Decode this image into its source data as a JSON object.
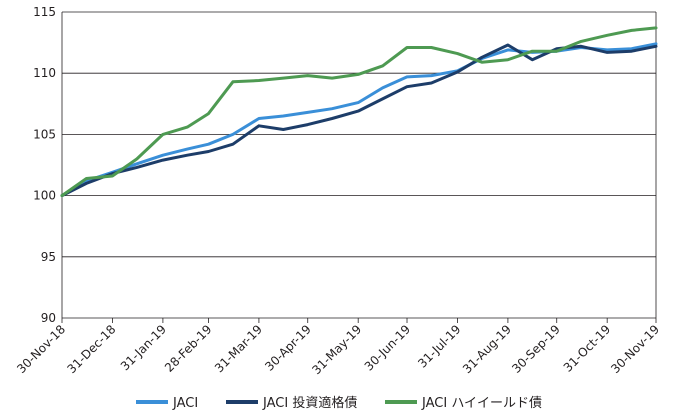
{
  "chart_data": {
    "type": "line",
    "title": "",
    "xlabel": "",
    "ylabel": "",
    "ylim": [
      90,
      115
    ],
    "yticks": [
      90,
      95,
      100,
      105,
      110,
      115
    ],
    "grid": "horizontal",
    "legend_position": "bottom",
    "x_tick_labels": [
      "30-Nov-18",
      "31-Dec-18",
      "31-Jan-19",
      "28-Feb-19",
      "31-Mar-19",
      "30-Apr-19",
      "31-May-19",
      "30-Jun-19",
      "31-Jul-19",
      "31-Aug-19",
      "30-Sep-19",
      "31-Oct-19",
      "30-Nov-19"
    ],
    "x": [
      "2018-11-30",
      "2018-12-15",
      "2018-12-31",
      "2019-01-15",
      "2019-01-31",
      "2019-02-15",
      "2019-02-28",
      "2019-03-15",
      "2019-03-31",
      "2019-04-15",
      "2019-04-30",
      "2019-05-15",
      "2019-05-31",
      "2019-06-15",
      "2019-06-30",
      "2019-07-15",
      "2019-07-31",
      "2019-08-15",
      "2019-08-31",
      "2019-09-15",
      "2019-09-30",
      "2019-10-15",
      "2019-10-31",
      "2019-11-15",
      "2019-11-30"
    ],
    "series": [
      {
        "name": "JACI",
        "color": "#3a8fd8",
        "values": [
          100.0,
          101.2,
          101.9,
          102.6,
          103.3,
          103.8,
          104.2,
          105.0,
          106.3,
          106.5,
          106.8,
          107.1,
          107.6,
          108.8,
          109.7,
          109.8,
          110.2,
          111.2,
          111.9,
          111.7,
          111.8,
          112.1,
          111.9,
          112.0,
          112.4
        ]
      },
      {
        "name": "JACI 投資適格債",
        "color": "#1d3d69",
        "values": [
          100.0,
          101.0,
          101.8,
          102.3,
          102.9,
          103.3,
          103.6,
          104.2,
          105.7,
          105.4,
          105.8,
          106.3,
          106.9,
          107.9,
          108.9,
          109.2,
          110.1,
          111.3,
          112.3,
          111.1,
          112.0,
          112.2,
          111.7,
          111.8,
          112.2
        ]
      },
      {
        "name": "JACI ハイイールド債",
        "color": "#4e9a52",
        "values": [
          100.0,
          101.4,
          101.6,
          103.0,
          105.0,
          105.6,
          106.7,
          109.3,
          109.4,
          109.6,
          109.8,
          109.6,
          109.9,
          110.6,
          112.1,
          112.1,
          111.6,
          110.9,
          111.1,
          111.8,
          111.8,
          112.6,
          113.1,
          113.5,
          113.7
        ]
      }
    ]
  }
}
